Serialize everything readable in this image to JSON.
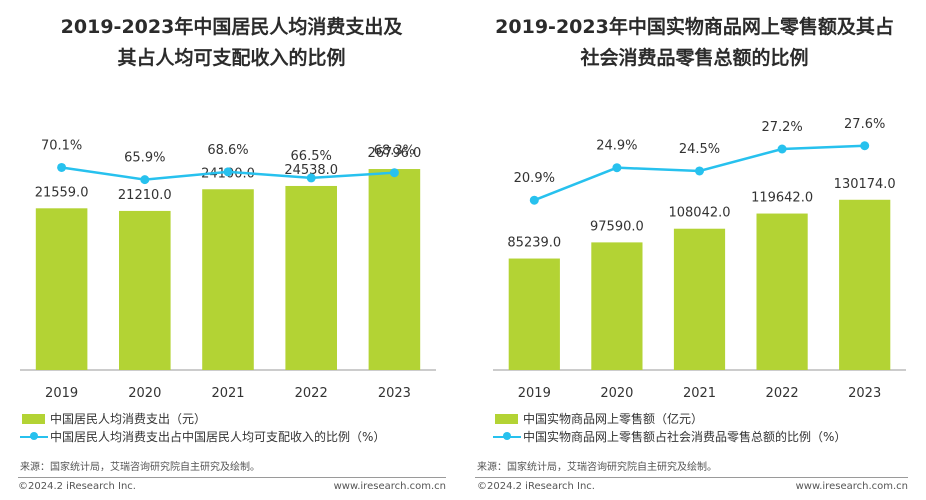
{
  "charts": [
    {
      "title_line1": "2019-2023年中国居民人均消费支出及",
      "title_line2": "其占人均可支配收入的比例",
      "legend_bar": "中国居民人均消费支出（元）",
      "legend_line": "中国居民人均消费支出占中国居民人均可支配收入的比例（%）",
      "source": "来源：国家统计局，艾瑞咨询研究院自主研究及绘制。",
      "footer_left": "©2024.2 iResearch Inc.",
      "footer_right": "www.iresearch.com.cn"
    },
    {
      "title_line1": "2019-2023年中国实物商品网上零售额及其占",
      "title_line2": "社会消费品零售总额的比例",
      "legend_bar": "中国实物商品网上零售额（亿元）",
      "legend_line": "中国实物商品网上零售额占社会消费品零售总额的比例（%）",
      "source": "来源：国家统计局，艾瑞咨询研究院自主研究及绘制。",
      "footer_left": "©2024.2 iResearch Inc.",
      "footer_right": "www.iresearch.com.cn"
    }
  ],
  "chart_data": [
    {
      "type": "bar+line",
      "title": "2019-2023年中国居民人均消费支出及其占人均可支配收入的比例",
      "categories": [
        "2019",
        "2020",
        "2021",
        "2022",
        "2023"
      ],
      "series": [
        {
          "name": "中国居民人均消费支出（元）",
          "type": "bar",
          "values": [
            21559.0,
            21210.0,
            24100.0,
            24538.0,
            26796.0
          ],
          "labels": [
            "21559.0",
            "21210.0",
            "24100.0",
            "24538.0",
            "26796.0"
          ]
        },
        {
          "name": "中国居民人均消费支出占中国居民人均可支配收入的比例（%）",
          "type": "line",
          "values": [
            70.1,
            65.9,
            68.6,
            66.5,
            68.3
          ],
          "labels": [
            "70.1%",
            "65.9%",
            "68.6%",
            "66.5%",
            "68.3%"
          ]
        }
      ],
      "bar_ylim": [
        0,
        34000
      ],
      "line_ylim": [
        0,
        90
      ],
      "grid": false,
      "legend_position": "bottom-left",
      "colors": {
        "bar": "#b3d334",
        "line": "#27c1ee"
      }
    },
    {
      "type": "bar+line",
      "title": "2019-2023年中国实物商品网上零售额及其占社会消费品零售总额的比例",
      "categories": [
        "2019",
        "2020",
        "2021",
        "2022",
        "2023"
      ],
      "series": [
        {
          "name": "中国实物商品网上零售额（亿元）",
          "type": "bar",
          "values": [
            85239.0,
            97590.0,
            108042.0,
            119642.0,
            130174.0
          ],
          "labels": [
            "85239.0",
            "97590.0",
            "108042.0",
            "119642.0",
            "130174.0"
          ]
        },
        {
          "name": "中国实物商品网上零售额占社会消费品零售总额的比例（%）",
          "type": "line",
          "values": [
            20.9,
            24.9,
            24.5,
            27.2,
            27.6
          ],
          "labels": [
            "20.9%",
            "24.9%",
            "24.5%",
            "27.2%",
            "27.6%"
          ]
        }
      ],
      "bar_ylim": [
        0,
        195000
      ],
      "line_ylim": [
        0,
        32
      ],
      "grid": false,
      "legend_position": "bottom-left",
      "colors": {
        "bar": "#b3d334",
        "line": "#27c1ee"
      }
    }
  ]
}
